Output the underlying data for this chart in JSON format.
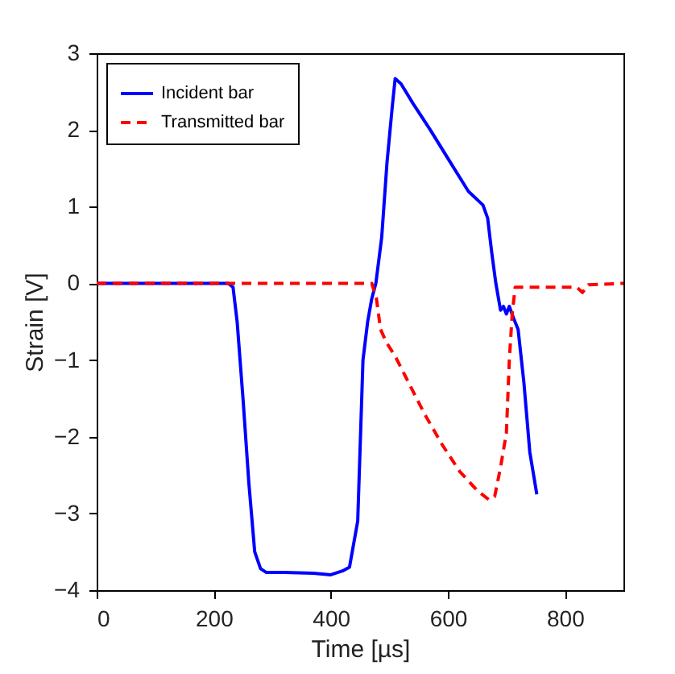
{
  "chart_data": {
    "type": "line",
    "xlabel": "Time [µs]",
    "ylabel": "Strain [V]",
    "xlim": [
      0,
      900
    ],
    "xticks": [
      0,
      200,
      400,
      600,
      800
    ],
    "ylim": [
      -4,
      3
    ],
    "yticks": [
      -4,
      -3,
      -2,
      -1,
      0,
      1,
      2,
      3
    ],
    "grid": false,
    "legend": "top left",
    "marker": "none",
    "series": [
      {
        "name": "Incident bar",
        "color": "#0000ff",
        "line_style": "solid",
        "x": [
          0,
          100,
          200,
          225,
          233,
          240,
          250,
          260,
          270,
          280,
          290,
          320,
          370,
          400,
          420,
          432,
          446,
          455,
          463,
          470,
          477,
          487,
          496,
          505,
          510,
          520,
          540,
          570,
          600,
          635,
          660,
          668,
          675,
          682,
          690,
          695,
          700,
          705,
          712,
          720,
          730,
          740,
          752
        ],
        "values": [
          0,
          0,
          0,
          0,
          -0.05,
          -0.5,
          -1.5,
          -2.6,
          -3.5,
          -3.72,
          -3.77,
          -3.77,
          -3.78,
          -3.8,
          -3.75,
          -3.7,
          -3.1,
          -1.0,
          -0.5,
          -0.2,
          0,
          0.6,
          1.57,
          2.3,
          2.67,
          2.6,
          2.35,
          2.0,
          1.63,
          1.2,
          1.02,
          0.85,
          0.4,
          0,
          -0.35,
          -0.3,
          -0.4,
          -0.3,
          -0.45,
          -0.6,
          -1.3,
          -2.2,
          -2.75
        ]
      },
      {
        "name": "Transmitted bar",
        "color": "#ff0000",
        "line_style": "dashed",
        "x": [
          0,
          200,
          300,
          400,
          470,
          478,
          485,
          495,
          510,
          530,
          560,
          590,
          620,
          650,
          670,
          680,
          690,
          700,
          705,
          710,
          715,
          760,
          820,
          830,
          840,
          900
        ],
        "values": [
          0,
          0,
          0,
          0,
          0,
          -0.2,
          -0.6,
          -0.77,
          -0.95,
          -1.25,
          -1.7,
          -2.1,
          -2.45,
          -2.7,
          -2.82,
          -2.78,
          -2.4,
          -1.95,
          -1.0,
          -0.4,
          -0.05,
          -0.05,
          -0.05,
          -0.12,
          -0.02,
          0
        ]
      }
    ]
  }
}
